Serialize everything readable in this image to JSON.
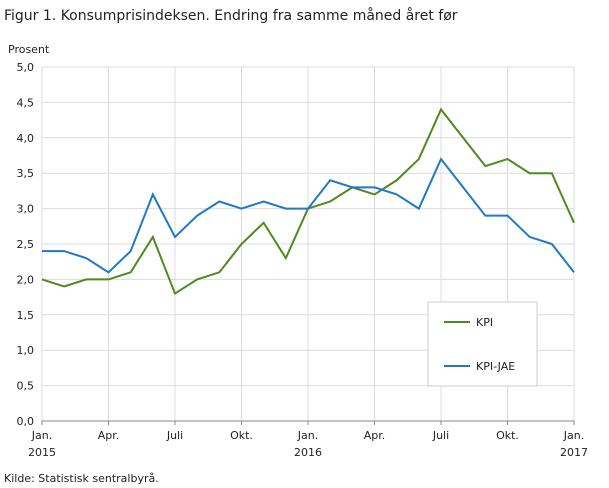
{
  "chart_data": {
    "type": "line",
    "title": "Figur 1. Konsumprisindeksen. Endring fra samme måned året før",
    "y_label": "Prosent",
    "source": "Kilde: Statistisk sentralbyrå.",
    "categories": [
      "Jan.\n2015",
      null,
      null,
      "Apr.",
      null,
      null,
      "Juli",
      null,
      null,
      "Okt.",
      null,
      null,
      "Jan.\n2016",
      null,
      null,
      "Apr.",
      null,
      null,
      "Juli",
      null,
      null,
      "Okt.",
      null,
      null,
      "Jan.\n2017"
    ],
    "series": [
      {
        "name": "KPI",
        "color": "#4d8a1f",
        "values": [
          2.0,
          1.9,
          2.0,
          2.0,
          2.1,
          2.6,
          1.8,
          2.0,
          2.1,
          2.5,
          2.8,
          2.3,
          3.0,
          3.1,
          3.3,
          3.2,
          3.4,
          3.7,
          4.4,
          4.0,
          3.6,
          3.7,
          3.5,
          3.5,
          2.8
        ]
      },
      {
        "name": "KPI-JAE",
        "color": "#1f78c8",
        "values": [
          2.4,
          2.4,
          2.3,
          2.1,
          2.4,
          3.2,
          2.6,
          2.9,
          3.1,
          3.0,
          3.1,
          3.0,
          3.0,
          3.4,
          3.3,
          3.3,
          3.2,
          3.0,
          3.7,
          3.3,
          2.9,
          2.9,
          2.6,
          2.5,
          2.1
        ]
      }
    ],
    "ylim": [
      0,
      5
    ],
    "yticks": [
      {
        "value": 0,
        "label": "0,0"
      },
      {
        "value": 0.5,
        "label": "0,5"
      },
      {
        "value": 1,
        "label": "1,0"
      },
      {
        "value": 1.5,
        "label": "1,5"
      },
      {
        "value": 2,
        "label": "2,0"
      },
      {
        "value": 2.5,
        "label": "2,5"
      },
      {
        "value": 3,
        "label": "3,0"
      },
      {
        "value": 3.5,
        "label": "3,5"
      },
      {
        "value": 4,
        "label": "4,0"
      },
      {
        "value": 4.5,
        "label": "4,5"
      },
      {
        "value": 5,
        "label": "5,0"
      }
    ],
    "grid": true,
    "legend": "lower right"
  }
}
